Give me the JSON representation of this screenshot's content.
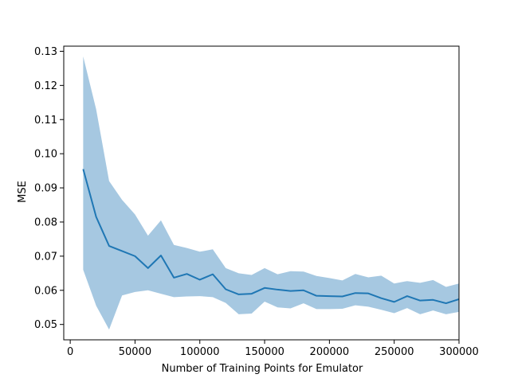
{
  "chart_data": {
    "type": "area",
    "title": "",
    "xlabel": "Number of Training Points for Emulator",
    "ylabel": "MSE",
    "xlim": [
      -5000,
      300000
    ],
    "ylim": [
      0.0455,
      0.1315
    ],
    "grid": false,
    "legend": "none",
    "colors": {
      "line": "#1f77b4",
      "band": "#a6c8e1"
    },
    "x_ticks": [
      0,
      50000,
      100000,
      150000,
      200000,
      250000,
      300000
    ],
    "x_tick_labels": [
      "0",
      "50000",
      "100000",
      "150000",
      "200000",
      "250000",
      "300000"
    ],
    "y_ticks": [
      0.05,
      0.06,
      0.07,
      0.08,
      0.09,
      0.1,
      0.11,
      0.12,
      0.13
    ],
    "y_tick_labels": [
      "0.05",
      "0.06",
      "0.07",
      "0.08",
      "0.09",
      "0.10",
      "0.11",
      "0.12",
      "0.13"
    ],
    "x": [
      10000,
      20000,
      30000,
      40000,
      50000,
      60000,
      70000,
      80000,
      90000,
      100000,
      110000,
      120000,
      130000,
      140000,
      150000,
      160000,
      170000,
      180000,
      190000,
      200000,
      210000,
      220000,
      230000,
      240000,
      250000,
      260000,
      270000,
      280000,
      290000,
      300000
    ],
    "series": [
      {
        "values": [
          0.0955,
          0.0815,
          0.073,
          0.0715,
          0.07,
          0.0665,
          0.0702,
          0.0637,
          0.0648,
          0.0631,
          0.0647,
          0.0603,
          0.0588,
          0.059,
          0.0607,
          0.0602,
          0.0598,
          0.06,
          0.0584,
          0.0583,
          0.0582,
          0.0592,
          0.0591,
          0.0577,
          0.0566,
          0.0583,
          0.057,
          0.0572,
          0.0562,
          0.0574
        ],
        "lower": [
          0.066,
          0.0555,
          0.0485,
          0.0585,
          0.0595,
          0.06,
          0.059,
          0.058,
          0.0582,
          0.0583,
          0.058,
          0.0563,
          0.053,
          0.0532,
          0.0567,
          0.055,
          0.0547,
          0.0562,
          0.0545,
          0.0545,
          0.0546,
          0.0556,
          0.0552,
          0.0543,
          0.0533,
          0.0548,
          0.053,
          0.0541,
          0.053,
          0.0537
        ],
        "upper": [
          0.1285,
          0.113,
          0.092,
          0.0865,
          0.0822,
          0.076,
          0.0805,
          0.0733,
          0.0724,
          0.0713,
          0.072,
          0.0665,
          0.065,
          0.0645,
          0.0665,
          0.0647,
          0.0656,
          0.0655,
          0.0642,
          0.0636,
          0.0629,
          0.0648,
          0.0638,
          0.0643,
          0.062,
          0.0627,
          0.0622,
          0.063,
          0.061,
          0.062
        ]
      }
    ]
  }
}
